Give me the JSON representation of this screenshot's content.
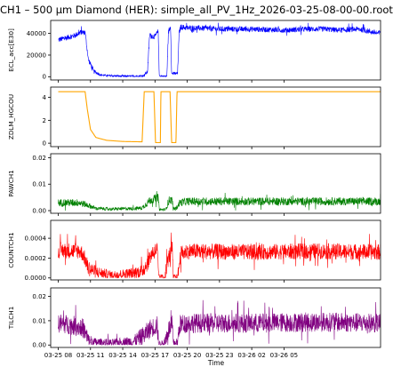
{
  "chart_data": {
    "type": "line",
    "title": "CH1 – 500 µm Diamond (HER): simple_all_PV_1Hz_2026-03-25-08-00-00.root",
    "xlabel": "Time",
    "x_range_hours_from": "2026-03-25 08:00",
    "xticks": [
      "03-25 08",
      "03-25 11",
      "03-25 14",
      "03-25 17",
      "03-25 20",
      "03-25 23",
      "03-26 02",
      "03-26 05"
    ],
    "sharex": true,
    "grid": false,
    "panels": [
      {
        "ylabel": "ECL_acc[E30]",
        "color": "#0000ff",
        "ylim": [
          -3000,
          52000
        ],
        "yticks": [
          "0",
          "20000",
          "40000"
        ],
        "ytick_values": [
          0,
          20000,
          40000
        ],
        "series": [
          {
            "noise": 2500,
            "points": [
              [
                0,
                34000
              ],
              [
                1.5,
                38000
              ],
              [
                2.1,
                41000
              ],
              [
                2.5,
                41000
              ],
              [
                2.8,
                16000
              ],
              [
                3.3,
                5000
              ],
              [
                4,
                1500
              ],
              [
                5,
                800
              ],
              [
                6,
                500
              ],
              [
                7,
                500
              ],
              [
                7.9,
                800
              ],
              [
                8.3,
                4500
              ],
              [
                8.5,
                38000
              ],
              [
                9,
                37000
              ],
              [
                9.3,
                42000
              ],
              [
                9.4,
                1000
              ],
              [
                9.7,
                500
              ],
              [
                10.1,
                500
              ],
              [
                10.25,
                41000
              ],
              [
                10.45,
                47000
              ],
              [
                10.55,
                3000
              ],
              [
                11.1,
                3000
              ],
              [
                11.25,
                41000
              ],
              [
                11.4,
                46000
              ],
              [
                12,
                45000
              ],
              [
                13,
                45000
              ],
              [
                15,
                44000
              ],
              [
                18,
                44000
              ],
              [
                21,
                43000
              ],
              [
                23,
                44000
              ],
              [
                24,
                44000
              ],
              [
                25,
                44000
              ],
              [
                26,
                43000
              ],
              [
                28,
                44000
              ],
              [
                29.8,
                40000
              ],
              [
                30,
                42000
              ]
            ]
          }
        ]
      },
      {
        "ylabel": "ZDLM_HGCOU",
        "color": "#ffa500",
        "ylim": [
          -0.3,
          4.9
        ],
        "yticks": [
          "0",
          "2",
          "4"
        ],
        "ytick_values": [
          0,
          2,
          4
        ],
        "series": [
          {
            "noise": 0,
            "points": [
              [
                0,
                4.5
              ],
              [
                2.5,
                4.5
              ],
              [
                2.7,
                3
              ],
              [
                3,
                1.2
              ],
              [
                3.5,
                0.5
              ],
              [
                4.5,
                0.25
              ],
              [
                6,
                0.15
              ],
              [
                7.8,
                0.12
              ],
              [
                8,
                4.5
              ],
              [
                8.9,
                4.5
              ],
              [
                9.05,
                0.05
              ],
              [
                9.5,
                0.05
              ],
              [
                9.55,
                4.5
              ],
              [
                10.4,
                4.5
              ],
              [
                10.55,
                0.05
              ],
              [
                10.95,
                0.05
              ],
              [
                11.05,
                4.5
              ],
              [
                30,
                4.5
              ]
            ]
          }
        ]
      },
      {
        "ylabel": "PAWCH1",
        "color": "#008000",
        "ylim": [
          -0.001,
          0.0215
        ],
        "yticks": [
          "0.00",
          "0.01",
          "0.02"
        ],
        "ytick_values": [
          0,
          0.01,
          0.02
        ],
        "series": [
          {
            "noise": 0.0015,
            "points": [
              [
                0,
                0.003
              ],
              [
                2,
                0.003
              ],
              [
                2.8,
                0.002
              ],
              [
                3.5,
                0.0008
              ],
              [
                5,
                0.0006
              ],
              [
                7,
                0.0008
              ],
              [
                7.8,
                0.001
              ],
              [
                8.3,
                0.003
              ],
              [
                8.6,
                0.004
              ],
              [
                9.3,
                0.005
              ],
              [
                9.4,
                0.0004
              ],
              [
                10,
                0.0004
              ],
              [
                10.3,
                0.004
              ],
              [
                10.6,
                0.004
              ],
              [
                10.7,
                0.0005
              ],
              [
                11,
                0.001
              ],
              [
                11.3,
                0.003
              ],
              [
                12,
                0.0035
              ],
              [
                18,
                0.0035
              ],
              [
                24,
                0.0035
              ],
              [
                30,
                0.0035
              ]
            ]
          }
        ]
      },
      {
        "ylabel": "COUNTCH1",
        "color": "#ff0000",
        "ylim": [
          -2e-05,
          0.00058
        ],
        "yticks": [
          "0.0000",
          "0.0002",
          "0.0004"
        ],
        "ytick_values": [
          0,
          0.0002,
          0.0004
        ],
        "series": [
          {
            "noise": 8e-05,
            "points": [
              [
                0,
                0.00028
              ],
              [
                2,
                0.00027
              ],
              [
                2.3,
                0.00024
              ],
              [
                2.8,
                0.0001
              ],
              [
                3.5,
                6e-05
              ],
              [
                5,
                3e-05
              ],
              [
                7,
                5e-05
              ],
              [
                7.8,
                7e-05
              ],
              [
                8.3,
                0.00015
              ],
              [
                8.7,
                0.00025
              ],
              [
                9.2,
                0.00029
              ],
              [
                9.35,
                1e-05
              ],
              [
                9.9,
                1e-05
              ],
              [
                10.2,
                0.00018
              ],
              [
                10.6,
                0.00031
              ],
              [
                10.7,
                1e-05
              ],
              [
                11.1,
                1e-05
              ],
              [
                11.4,
                0.00024
              ],
              [
                12,
                0.00027
              ],
              [
                18,
                0.00026
              ],
              [
                24,
                0.00027
              ],
              [
                30,
                0.00026
              ]
            ]
          }
        ]
      },
      {
        "ylabel": "TILCH1",
        "color": "#800080",
        "ylim": [
          -0.001,
          0.0235
        ],
        "yticks": [
          "0.00",
          "0.01",
          "0.02"
        ],
        "ytick_values": [
          0,
          0.01,
          0.02
        ],
        "series": [
          {
            "noise": 0.004,
            "points": [
              [
                0,
                0.009
              ],
              [
                1.5,
                0.008
              ],
              [
                2.3,
                0.007
              ],
              [
                2.8,
                0.002
              ],
              [
                3.5,
                0.001
              ],
              [
                5,
                0.0008
              ],
              [
                7,
                0.0015
              ],
              [
                8,
                0.004
              ],
              [
                8.6,
                0.007
              ],
              [
                9.2,
                0.008
              ],
              [
                9.35,
                0.0005
              ],
              [
                9.9,
                0.0005
              ],
              [
                10.2,
                0.006
              ],
              [
                10.6,
                0.008
              ],
              [
                10.7,
                0.0008
              ],
              [
                11.1,
                0.001
              ],
              [
                11.3,
                0.0085
              ],
              [
                12,
                0.009
              ],
              [
                18,
                0.009
              ],
              [
                24,
                0.0095
              ],
              [
                30,
                0.009
              ]
            ]
          }
        ]
      }
    ]
  }
}
